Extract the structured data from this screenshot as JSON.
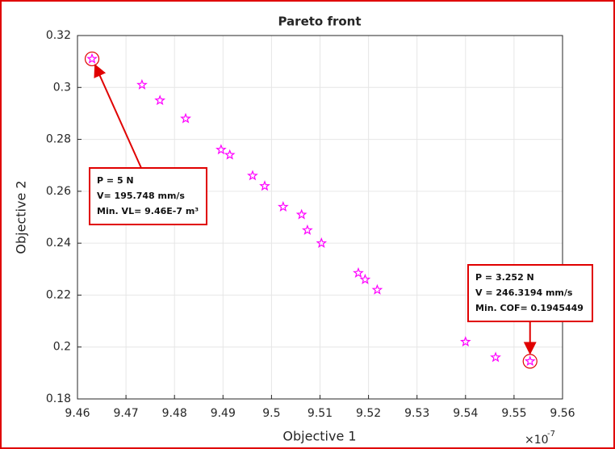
{
  "chart_data": {
    "type": "scatter",
    "title": "Pareto front",
    "x_label": "Objective 1",
    "y_label": "Objective 2",
    "x_exponent": {
      "base": "×10",
      "power": "-7"
    },
    "marker": "star",
    "color": "#ff00ff",
    "grid": true,
    "x": [
      9.463,
      9.4733,
      9.477,
      9.4823,
      9.4896,
      9.4914,
      9.4961,
      9.4986,
      9.5024,
      9.5062,
      9.5074,
      9.5103,
      9.5179,
      9.5193,
      9.5218,
      9.54,
      9.5462,
      9.5533
    ],
    "values": [
      0.311,
      0.301,
      0.295,
      0.288,
      0.276,
      0.274,
      0.266,
      0.262,
      0.254,
      0.251,
      0.245,
      0.24,
      0.2285,
      0.226,
      0.222,
      0.202,
      0.196,
      0.1945
    ],
    "xlim": [
      9.46,
      9.56
    ],
    "xticks": [
      9.46,
      9.47,
      9.48,
      9.49,
      9.5,
      9.51,
      9.52,
      9.53,
      9.54,
      9.55,
      9.56
    ],
    "ylim": [
      0.18,
      0.32
    ],
    "yticks": [
      0.18,
      0.2,
      0.22,
      0.24,
      0.26,
      0.28,
      0.3,
      0.32
    ],
    "annotations": [
      {
        "lines": [
          "P = 5 N",
          "V= 195.748 mm/s",
          "Min. VL= 9.46E-7 m³"
        ]
      },
      {
        "lines": [
          "P = 3.252 N",
          "V = 246.3194 mm/s",
          "Min. COF= 0.1945449"
        ]
      }
    ]
  }
}
